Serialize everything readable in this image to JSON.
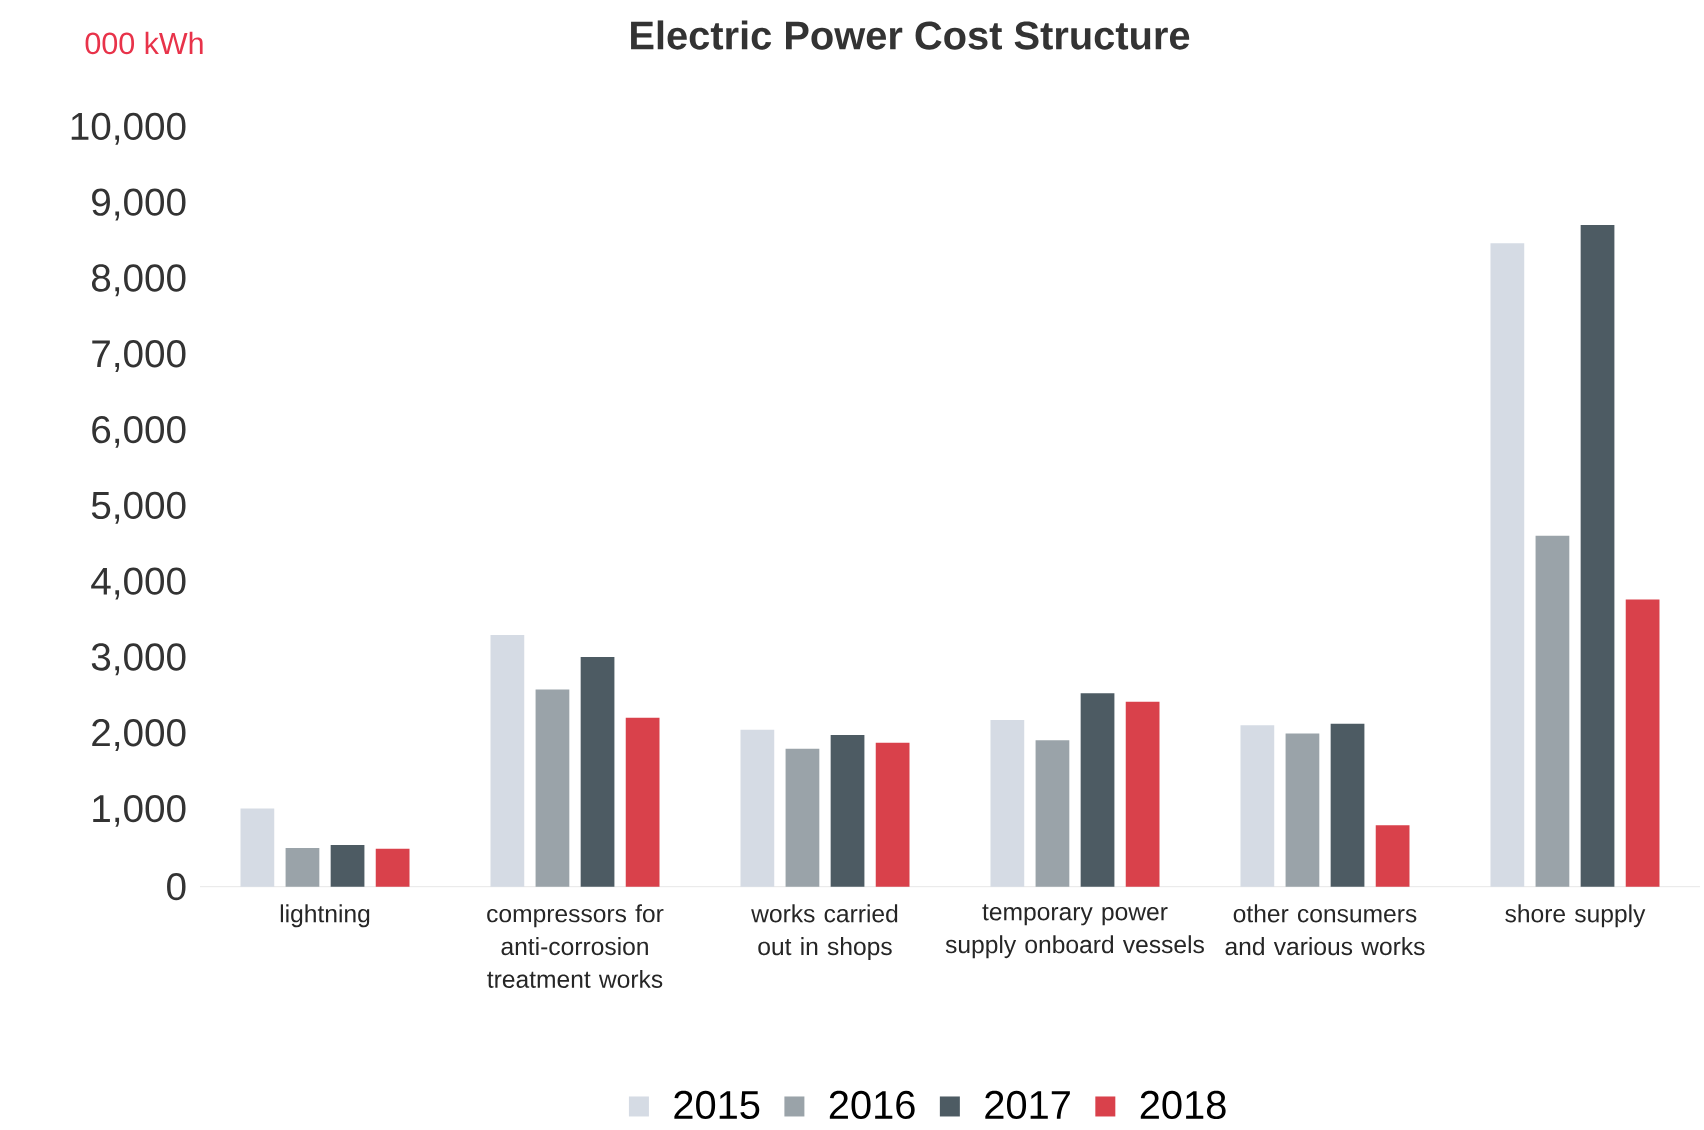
{
  "chart_data": {
    "type": "bar",
    "title": "Electric Power Cost Structure",
    "ylabel": "000 kWh",
    "categories": [
      "lightning",
      "compressors for anti-corrosion treatment works",
      "works carried out in shops",
      "temporary power supply onboard vessels",
      "other consumers and various works",
      "shore supply"
    ],
    "series": [
      {
        "name": "2015",
        "color": "#d5dbe4",
        "values": [
          1030,
          3320,
          2070,
          2200,
          2130,
          8490
        ]
      },
      {
        "name": "2016",
        "color": "#9aa3a9",
        "values": [
          510,
          2600,
          1820,
          1930,
          2020,
          4630
        ]
      },
      {
        "name": "2017",
        "color": "#4d5b63",
        "values": [
          550,
          3030,
          2000,
          2550,
          2150,
          8730
        ]
      },
      {
        "name": "2018",
        "color": "#d9414b",
        "values": [
          500,
          2230,
          1900,
          2440,
          810,
          3790
        ]
      }
    ],
    "ylim": [
      0,
      10000
    ],
    "yticks": [
      {
        "value": 0,
        "label": "0"
      },
      {
        "value": 1000,
        "label": "1,000"
      },
      {
        "value": 2000,
        "label": "2,000"
      },
      {
        "value": 3000,
        "label": "3,000"
      },
      {
        "value": 4000,
        "label": "4,000"
      },
      {
        "value": 5000,
        "label": "5,000"
      },
      {
        "value": 6000,
        "label": "6,000"
      },
      {
        "value": 7000,
        "label": "7,000"
      },
      {
        "value": 8000,
        "label": "8,000"
      },
      {
        "value": 9000,
        "label": "9,000"
      },
      {
        "value": 10000,
        "label": "10,000"
      }
    ],
    "legend": "bottom"
  }
}
